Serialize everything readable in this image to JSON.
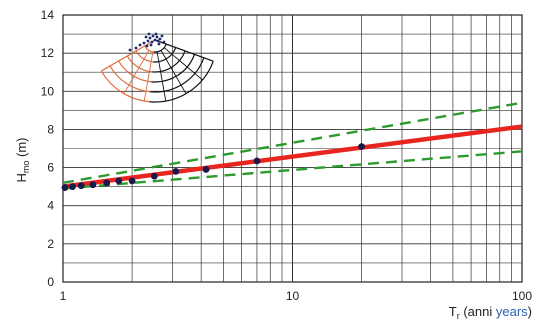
{
  "chart_data": {
    "type": "line",
    "title": "",
    "xscale": "log",
    "xlim": [
      1,
      100
    ],
    "ylim": [
      0,
      14
    ],
    "grid": true,
    "xticks": [
      "1",
      "10",
      "100"
    ],
    "yticks": [
      "0",
      "2",
      "4",
      "6",
      "8",
      "10",
      "12",
      "14"
    ],
    "ylabel": {
      "main": "H",
      "sub": "mo",
      "unit": " (m)"
    },
    "xlabel": {
      "main": "T",
      "sub": "r",
      "it": " (anni ",
      "en": "years",
      "close": ")"
    },
    "series": [
      {
        "kind": "fit",
        "color": "#e8251f",
        "x": [
          1,
          100
        ],
        "y": [
          5.0,
          8.15
        ]
      },
      {
        "kind": "confidence-upper",
        "color": "#2e9a2e",
        "x": [
          1,
          100
        ],
        "y": [
          5.2,
          9.4
        ]
      },
      {
        "kind": "confidence-lower",
        "color": "#2e9a2e",
        "x": [
          1,
          100
        ],
        "y": [
          4.9,
          6.85
        ]
      },
      {
        "kind": "observed",
        "color": "#1a1a4a",
        "x": [
          1.02,
          1.1,
          1.2,
          1.35,
          1.55,
          1.75,
          2.0,
          2.5,
          3.1,
          4.2,
          7.0,
          20.0
        ],
        "y": [
          4.95,
          5.0,
          5.05,
          5.1,
          5.2,
          5.3,
          5.3,
          5.55,
          5.8,
          5.9,
          6.35,
          7.1
        ]
      }
    ]
  },
  "inset": {
    "description_icon": "wave-direction-rose-icon",
    "sector_color": "#e06a3a",
    "ring_color": "#111111"
  }
}
